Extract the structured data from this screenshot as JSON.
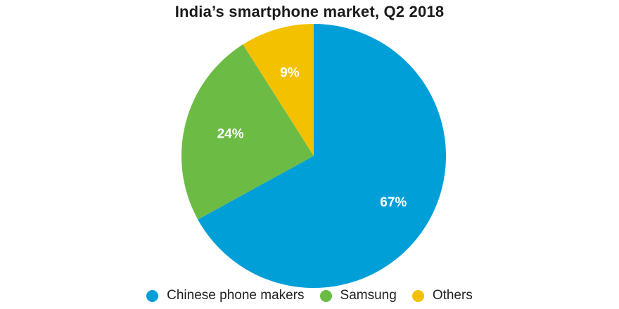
{
  "chart_data": {
    "type": "pie",
    "title": "India’s smartphone market, Q2 2018",
    "categories": [
      "Chinese phone makers",
      "Samsung",
      "Others"
    ],
    "values": [
      67,
      24,
      9
    ],
    "labels": [
      "67%",
      "24%",
      "9%"
    ],
    "colors": [
      "#009fd8",
      "#6cbb45",
      "#f4c100"
    ],
    "legend_position": "bottom"
  }
}
